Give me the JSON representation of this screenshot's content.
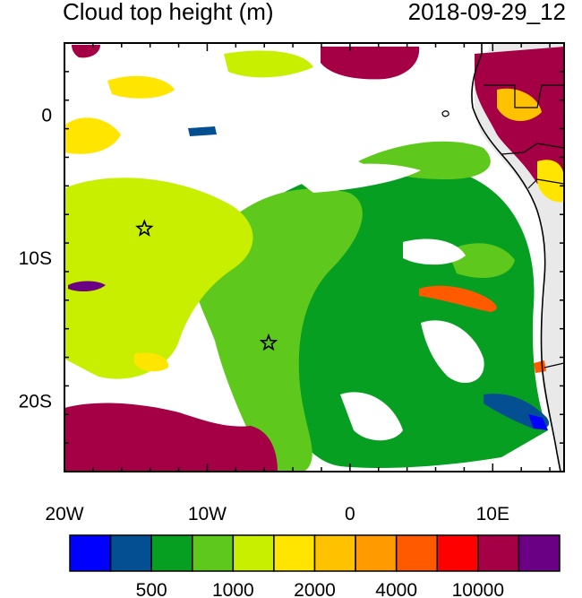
{
  "map": {
    "title_left": "Cloud top height (m)",
    "title_right": "2018-09-29_12",
    "lon_range": [
      -20,
      15
    ],
    "lat_range": [
      -25,
      5
    ],
    "lon_ticks": [
      {
        "value": -20,
        "label": "20W"
      },
      {
        "value": -10,
        "label": "10W"
      },
      {
        "value": 0,
        "label": "0"
      },
      {
        "value": 10,
        "label": "10E"
      }
    ],
    "lat_ticks": [
      {
        "value": 0,
        "label": "0"
      },
      {
        "value": -10,
        "label": "10S"
      },
      {
        "value": -20,
        "label": "20S"
      }
    ],
    "markers": [
      {
        "name": "star-marker-north",
        "lon": -14.4,
        "lat": -8.0
      },
      {
        "name": "star-marker-south",
        "lon": -5.7,
        "lat": -16.0
      }
    ]
  },
  "colorbar": {
    "colors": [
      "#0000ff",
      "#044f91",
      "#069f21",
      "#5ec91c",
      "#c8ee00",
      "#ffe500",
      "#ffc200",
      "#ff9a00",
      "#ff5a00",
      "#ff0000",
      "#a50045",
      "#6a0084"
    ],
    "labels": [
      {
        "after_box": 2,
        "text": "500"
      },
      {
        "after_box": 4,
        "text": "1000"
      },
      {
        "after_box": 6,
        "text": "2000"
      },
      {
        "after_box": 8,
        "text": "4000"
      },
      {
        "after_box": 10,
        "text": "10000"
      }
    ]
  }
}
